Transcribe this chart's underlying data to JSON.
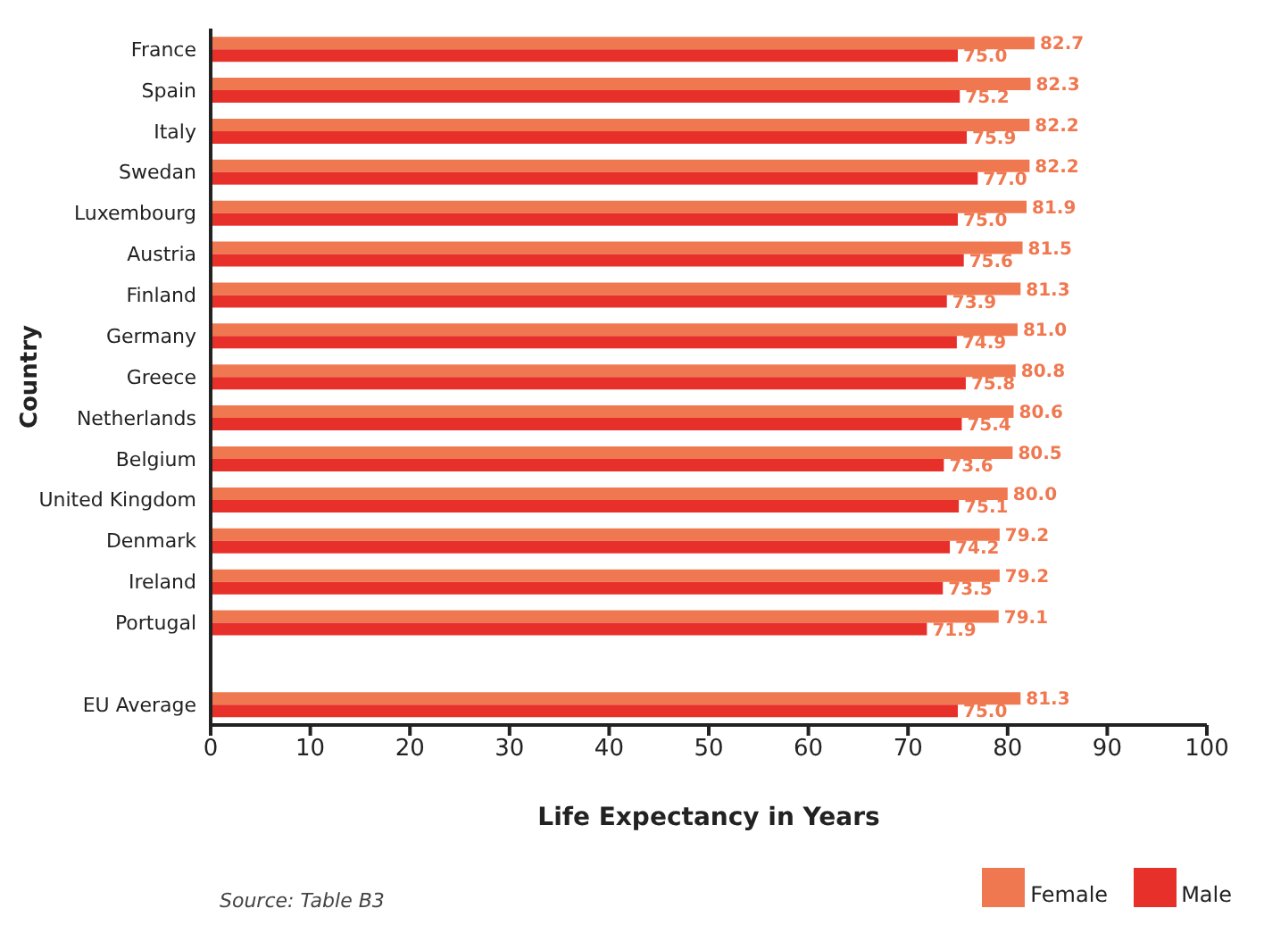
{
  "chart_data": {
    "type": "bar",
    "orientation": "horizontal",
    "xlabel": "Life Expectancy in Years",
    "ylabel": "Country",
    "categories": [
      "France",
      "Spain",
      "Italy",
      "Swedan",
      "Luxembourg",
      "Austria",
      "Finland",
      "Germany",
      "Greece",
      "Netherlands",
      "Belgium",
      "United Kingdom",
      "Denmark",
      "Ireland",
      "Portugal",
      null,
      "EU Average"
    ],
    "series": [
      {
        "name": "Female",
        "color": "#f07850",
        "values": [
          82.7,
          82.3,
          82.2,
          82.2,
          81.9,
          81.5,
          81.3,
          81.0,
          80.8,
          80.6,
          80.5,
          80.0,
          79.2,
          79.2,
          79.1,
          null,
          81.3
        ],
        "value_labels": [
          "82.7",
          "82.3",
          "82.2",
          "82.2",
          "81.9",
          "81.5",
          "81.3",
          "81.0",
          "80.8",
          "80.6",
          "80.5",
          "80.0",
          "79.2",
          "79.2",
          "79.1",
          null,
          "81.3"
        ]
      },
      {
        "name": "Male",
        "color": "#e8302a",
        "values": [
          75.0,
          75.2,
          75.9,
          77.0,
          75.0,
          75.6,
          73.9,
          74.9,
          75.8,
          75.4,
          73.6,
          75.1,
          74.2,
          73.5,
          71.9,
          null,
          75.0
        ],
        "value_labels": [
          "75.0",
          "75.2",
          "75.9",
          "77.0",
          "75.0",
          "75.6",
          "73.9",
          "74.9",
          "75.8",
          "75.4",
          "73.6",
          "75.1",
          "74.2",
          "73.5",
          "71.9",
          null,
          "75.0"
        ]
      }
    ],
    "xlim": [
      0,
      100
    ],
    "xticks": [
      0,
      10,
      20,
      30,
      40,
      50,
      60,
      70,
      80,
      90,
      100
    ],
    "legend": "bottom right",
    "annotations": [
      "Source: Table B3"
    ]
  }
}
